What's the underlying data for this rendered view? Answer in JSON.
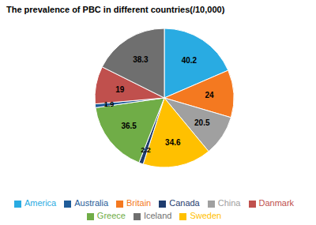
{
  "chart_data": {
    "type": "pie",
    "title": "The prevalence of PBC in different countries(/10,000)",
    "categories": [
      "America",
      "Britain",
      "China",
      "Sweden",
      "Canada",
      "Greece",
      "Australia",
      "Danmark",
      "Iceland"
    ],
    "values": [
      40.2,
      24,
      20.5,
      34.6,
      2.2,
      36.5,
      1.9,
      19,
      38.3
    ],
    "colors": [
      "#29ABE2",
      "#F47920",
      "#A0A0A0",
      "#FFC000",
      "#1F3C6E",
      "#70AD47",
      "#1F5C99",
      "#C0504D",
      "#6F6F6F"
    ],
    "data_labels": true,
    "legend": "bottom"
  }
}
